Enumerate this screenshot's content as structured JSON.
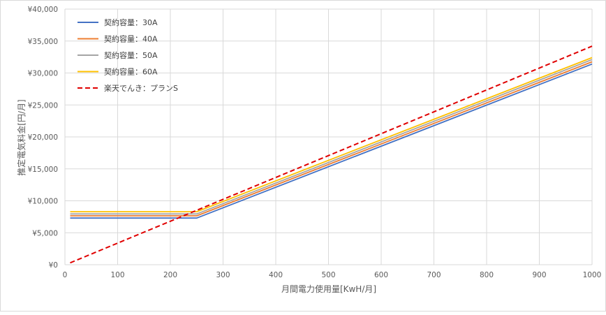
{
  "chart_data": {
    "type": "line",
    "title": "",
    "xlabel": "月間電力使用量[KwH/月]",
    "ylabel": "推定電気料金[円/月]",
    "xlim": [
      0,
      1000
    ],
    "ylim": [
      0,
      40000
    ],
    "x_ticks": [
      "0",
      "100",
      "200",
      "300",
      "400",
      "500",
      "600",
      "700",
      "800",
      "900",
      "1000"
    ],
    "y_ticks": [
      "¥0",
      "¥5,000",
      "¥10,000",
      "¥15,000",
      "¥20,000",
      "¥25,000",
      "¥30,000",
      "¥35,000",
      "¥40,000"
    ],
    "grid": true,
    "legend_position": "top-left",
    "series": [
      {
        "name": "契約容量：30A",
        "color": "#4472c4",
        "dash": false,
        "points": [
          [
            10,
            7300
          ],
          [
            250,
            7300
          ],
          [
            1000,
            31400
          ]
        ]
      },
      {
        "name": "契約容量：40A",
        "color": "#ed7d31",
        "dash": false,
        "points": [
          [
            10,
            7650
          ],
          [
            250,
            7650
          ],
          [
            1000,
            31750
          ]
        ]
      },
      {
        "name": "契約容量：50A",
        "color": "#a5a5a5",
        "dash": false,
        "points": [
          [
            10,
            7950
          ],
          [
            250,
            7950
          ],
          [
            1000,
            32100
          ]
        ]
      },
      {
        "name": "契約容量：60A",
        "color": "#ffc000",
        "dash": false,
        "points": [
          [
            10,
            8300
          ],
          [
            250,
            8300
          ],
          [
            1000,
            32400
          ]
        ]
      },
      {
        "name": "楽天でんき：プランS",
        "color": "#e00000",
        "dash": true,
        "points": [
          [
            10,
            300
          ],
          [
            1000,
            34200
          ]
        ]
      }
    ]
  }
}
